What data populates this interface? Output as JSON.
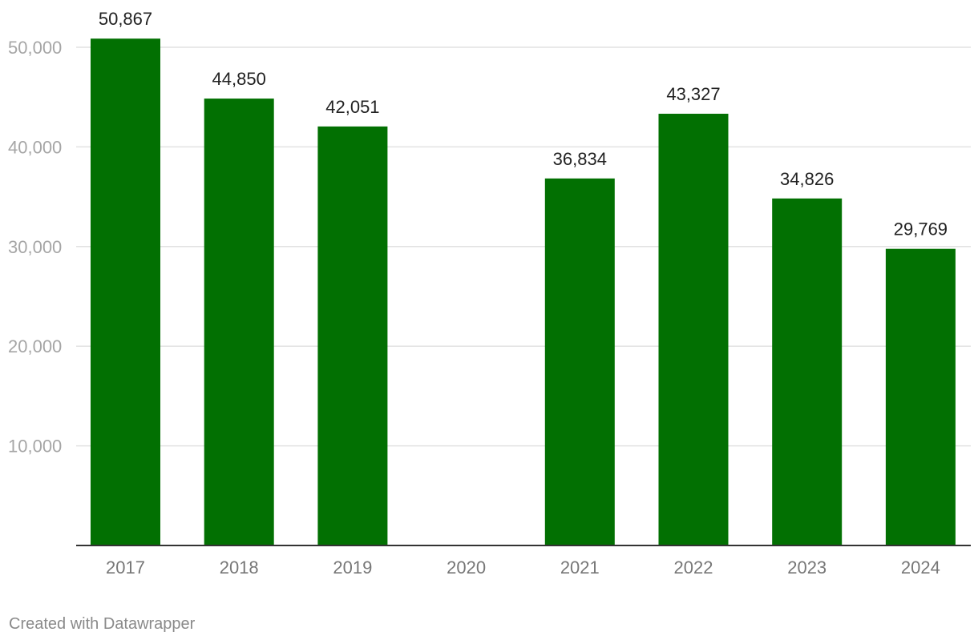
{
  "chart_data": {
    "type": "bar",
    "categories": [
      "2017",
      "2018",
      "2019",
      "2020",
      "2021",
      "2022",
      "2023",
      "2024"
    ],
    "values": [
      50867,
      44850,
      42051,
      null,
      36834,
      43327,
      34826,
      29769
    ],
    "value_labels": [
      "50,867",
      "44,850",
      "42,051",
      "",
      "36,834",
      "43,327",
      "34,826",
      "29,769"
    ],
    "y_ticks": [
      10000,
      20000,
      30000,
      40000,
      50000
    ],
    "y_tick_labels": [
      "10,000",
      "20,000",
      "30,000",
      "40,000",
      "50,000"
    ],
    "ylim": [
      0,
      50000
    ],
    "title": "",
    "xlabel": "",
    "ylabel": "",
    "grid": true,
    "bar_color": "#027002"
  },
  "footer": {
    "credit": "Created with Datawrapper"
  }
}
